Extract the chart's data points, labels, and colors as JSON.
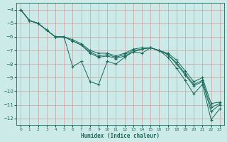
{
  "xlabel": "Humidex (Indice chaleur)",
  "bg_color": "#cceae7",
  "grid_color": "#b0d8d4",
  "line_color": "#1a6b5a",
  "ylim": [
    -12.5,
    -3.5
  ],
  "xlim": [
    -0.5,
    23.5
  ],
  "yticks": [
    -12,
    -11,
    -10,
    -9,
    -8,
    -7,
    -6,
    -5,
    -4
  ],
  "xticks": [
    0,
    1,
    2,
    3,
    4,
    5,
    6,
    7,
    8,
    9,
    10,
    11,
    12,
    13,
    14,
    15,
    16,
    17,
    18,
    19,
    20,
    21,
    22,
    23
  ],
  "series": [
    {
      "x": [
        0,
        1,
        2,
        3,
        4,
        5,
        6,
        7,
        8,
        9,
        10,
        11,
        12,
        13,
        14,
        15,
        16,
        17,
        18,
        19,
        20,
        21,
        22,
        23
      ],
      "y": [
        -4,
        -4.8,
        -5.0,
        -5.5,
        -6.0,
        -6.0,
        -8.2,
        -7.8,
        -9.3,
        -9.5,
        -7.8,
        -8.0,
        -7.5,
        -7.1,
        -7.2,
        -6.8,
        -7.0,
        -7.5,
        -8.3,
        -9.2,
        -10.2,
        -9.5,
        -12.1,
        -11.3
      ]
    },
    {
      "x": [
        0,
        1,
        2,
        3,
        4,
        5,
        6,
        7,
        8,
        9,
        10,
        11,
        12,
        13,
        14,
        15,
        16,
        17,
        18,
        19,
        20,
        21,
        22,
        23
      ],
      "y": [
        -4,
        -4.8,
        -5.0,
        -5.5,
        -6.0,
        -6.0,
        -6.2,
        -6.5,
        -7.0,
        -7.2,
        -7.2,
        -7.4,
        -7.2,
        -6.9,
        -6.8,
        -6.8,
        -7.0,
        -7.2,
        -7.7,
        -8.5,
        -9.3,
        -9.0,
        -10.9,
        -10.8
      ]
    },
    {
      "x": [
        0,
        1,
        2,
        3,
        4,
        5,
        6,
        7,
        8,
        9,
        10,
        11,
        12,
        13,
        14,
        15,
        16,
        17,
        18,
        19,
        20,
        21,
        22,
        23
      ],
      "y": [
        -4,
        -4.8,
        -5.0,
        -5.5,
        -6.0,
        -6.0,
        -6.3,
        -6.6,
        -7.1,
        -7.4,
        -7.3,
        -7.5,
        -7.3,
        -7.0,
        -6.9,
        -6.8,
        -7.0,
        -7.3,
        -7.9,
        -8.7,
        -9.5,
        -9.2,
        -11.2,
        -10.9
      ]
    },
    {
      "x": [
        0,
        1,
        2,
        3,
        4,
        5,
        6,
        7,
        8,
        9,
        10,
        11,
        12,
        13,
        14,
        15,
        16,
        17,
        18,
        19,
        20,
        21,
        22,
        23
      ],
      "y": [
        -4,
        -4.8,
        -5.0,
        -5.5,
        -6.0,
        -6.0,
        -6.3,
        -6.6,
        -7.2,
        -7.5,
        -7.4,
        -7.6,
        -7.4,
        -7.1,
        -6.9,
        -6.8,
        -7.0,
        -7.3,
        -8.0,
        -8.8,
        -9.6,
        -9.3,
        -11.5,
        -11.0
      ]
    }
  ]
}
